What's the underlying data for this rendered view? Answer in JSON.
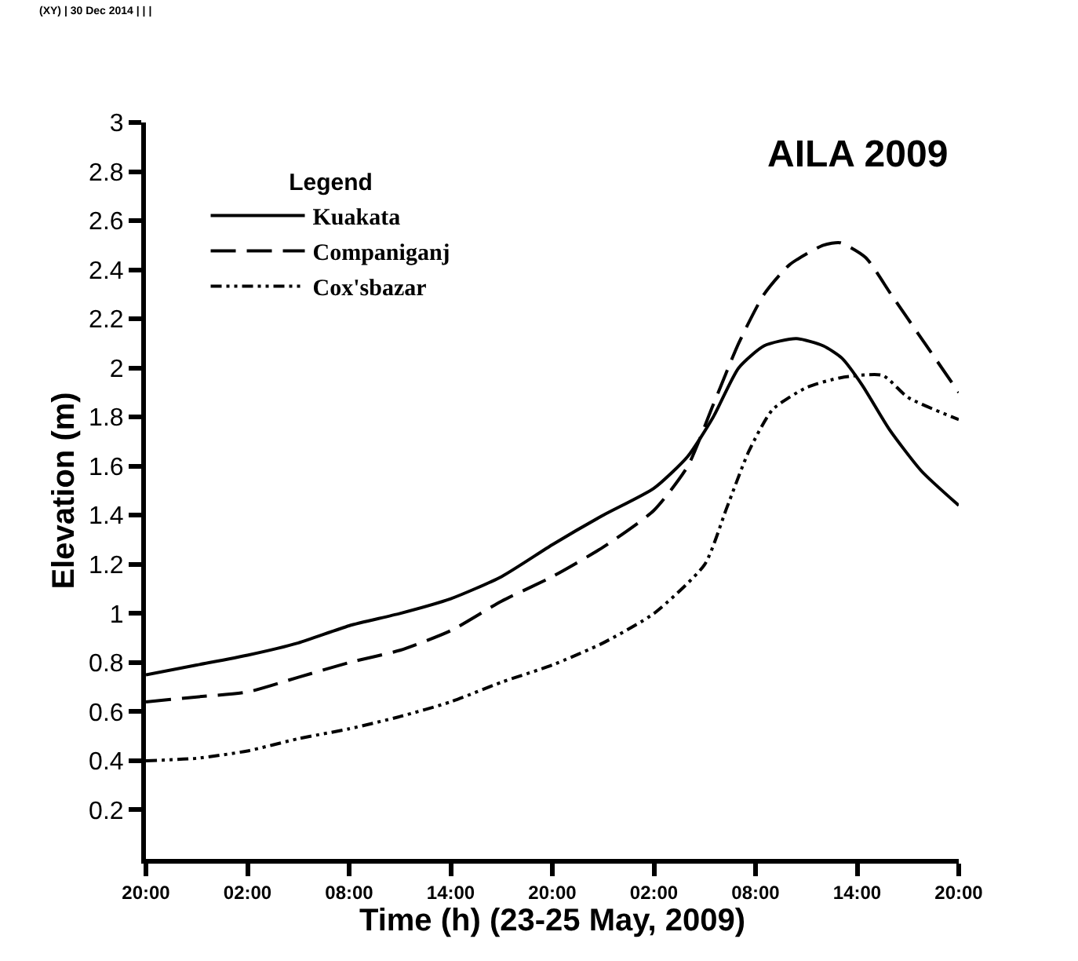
{
  "chart_data": {
    "type": "line",
    "title": "AILA 2009",
    "xlabel": "Time (h) (23-25 May, 2009)",
    "ylabel": "Elevation (m)",
    "legend_title": "Legend",
    "annotations": [
      "(XY) | 30 Dec 2014 | | |"
    ],
    "xlim": [
      "2009-05-23T20:00",
      "2009-05-25T20:00"
    ],
    "xticks": [
      {
        "value": "2009-05-23T20:00",
        "label": "20:00"
      },
      {
        "value": "2009-05-24T02:00",
        "label": "02:00"
      },
      {
        "value": "2009-05-24T08:00",
        "label": "08:00"
      },
      {
        "value": "2009-05-24T14:00",
        "label": "14:00"
      },
      {
        "value": "2009-05-24T20:00",
        "label": "20:00"
      },
      {
        "value": "2009-05-25T02:00",
        "label": "02:00"
      },
      {
        "value": "2009-05-25T08:00",
        "label": "08:00"
      },
      {
        "value": "2009-05-25T14:00",
        "label": "14:00"
      },
      {
        "value": "2009-05-25T20:00",
        "label": "20:00"
      }
    ],
    "ylim": [
      0,
      3
    ],
    "yticks": [
      0.2,
      0.4,
      0.6,
      0.8,
      1,
      1.2,
      1.4,
      1.6,
      1.8,
      2,
      2.2,
      2.4,
      2.6,
      2.8,
      3
    ],
    "legend": "top left",
    "marker": "none",
    "series": [
      {
        "name": "Kuakata",
        "color": "#000000",
        "line_style": "solid",
        "x": [
          "2009-05-23T20:00",
          "2009-05-23T23:00",
          "2009-05-24T02:00",
          "2009-05-24T05:00",
          "2009-05-24T08:00",
          "2009-05-24T11:00",
          "2009-05-24T14:00",
          "2009-05-24T17:00",
          "2009-05-24T20:00",
          "2009-05-24T23:00",
          "2009-05-25T02:00",
          "2009-05-25T04:00",
          "2009-05-25T05:30",
          "2009-05-25T07:00",
          "2009-05-25T08:30",
          "2009-05-25T10:24",
          "2009-05-25T12:00",
          "2009-05-25T13:06",
          "2009-05-25T14:18",
          "2009-05-25T15:54",
          "2009-05-25T17:48",
          "2009-05-25T20:00"
        ],
        "values": [
          0.75,
          0.79,
          0.83,
          0.88,
          0.95,
          1.0,
          1.06,
          1.15,
          1.28,
          1.4,
          1.51,
          1.64,
          1.8,
          2.0,
          2.09,
          2.12,
          2.09,
          2.04,
          1.93,
          1.75,
          1.58,
          1.44
        ]
      },
      {
        "name": "Companiganj",
        "color": "#000000",
        "line_style": "dashed",
        "x": [
          "2009-05-23T20:00",
          "2009-05-23T23:00",
          "2009-05-24T02:00",
          "2009-05-24T05:00",
          "2009-05-24T08:00",
          "2009-05-24T11:00",
          "2009-05-24T14:00",
          "2009-05-24T17:00",
          "2009-05-24T20:00",
          "2009-05-24T23:00",
          "2009-05-25T02:00",
          "2009-05-25T04:00",
          "2009-05-25T05:30",
          "2009-05-25T07:00",
          "2009-05-25T08:30",
          "2009-05-25T10:00",
          "2009-05-25T12:00",
          "2009-05-25T13:00",
          "2009-05-25T14:30",
          "2009-05-25T16:00",
          "2009-05-25T18:00",
          "2009-05-25T20:00"
        ],
        "values": [
          0.64,
          0.66,
          0.68,
          0.74,
          0.8,
          0.85,
          0.93,
          1.05,
          1.15,
          1.27,
          1.42,
          1.6,
          1.85,
          2.1,
          2.3,
          2.42,
          2.5,
          2.51,
          2.45,
          2.3,
          2.1,
          1.9
        ]
      },
      {
        "name": "Cox'sbazar",
        "color": "#000000",
        "line_style": "dotted",
        "x": [
          "2009-05-23T20:00",
          "2009-05-23T23:00",
          "2009-05-24T02:00",
          "2009-05-24T05:00",
          "2009-05-24T08:00",
          "2009-05-24T11:00",
          "2009-05-24T14:00",
          "2009-05-24T17:00",
          "2009-05-24T20:00",
          "2009-05-24T23:00",
          "2009-05-25T02:00",
          "2009-05-25T05:00",
          "2009-05-25T06:18",
          "2009-05-25T07:36",
          "2009-05-25T09:00",
          "2009-05-25T11:00",
          "2009-05-25T13:00",
          "2009-05-25T15:30",
          "2009-05-25T17:00",
          "2009-05-25T20:00"
        ],
        "values": [
          0.4,
          0.41,
          0.44,
          0.49,
          0.53,
          0.58,
          0.64,
          0.72,
          0.79,
          0.88,
          1.0,
          1.2,
          1.43,
          1.66,
          1.83,
          1.92,
          1.96,
          1.97,
          1.88,
          1.79
        ]
      }
    ]
  }
}
